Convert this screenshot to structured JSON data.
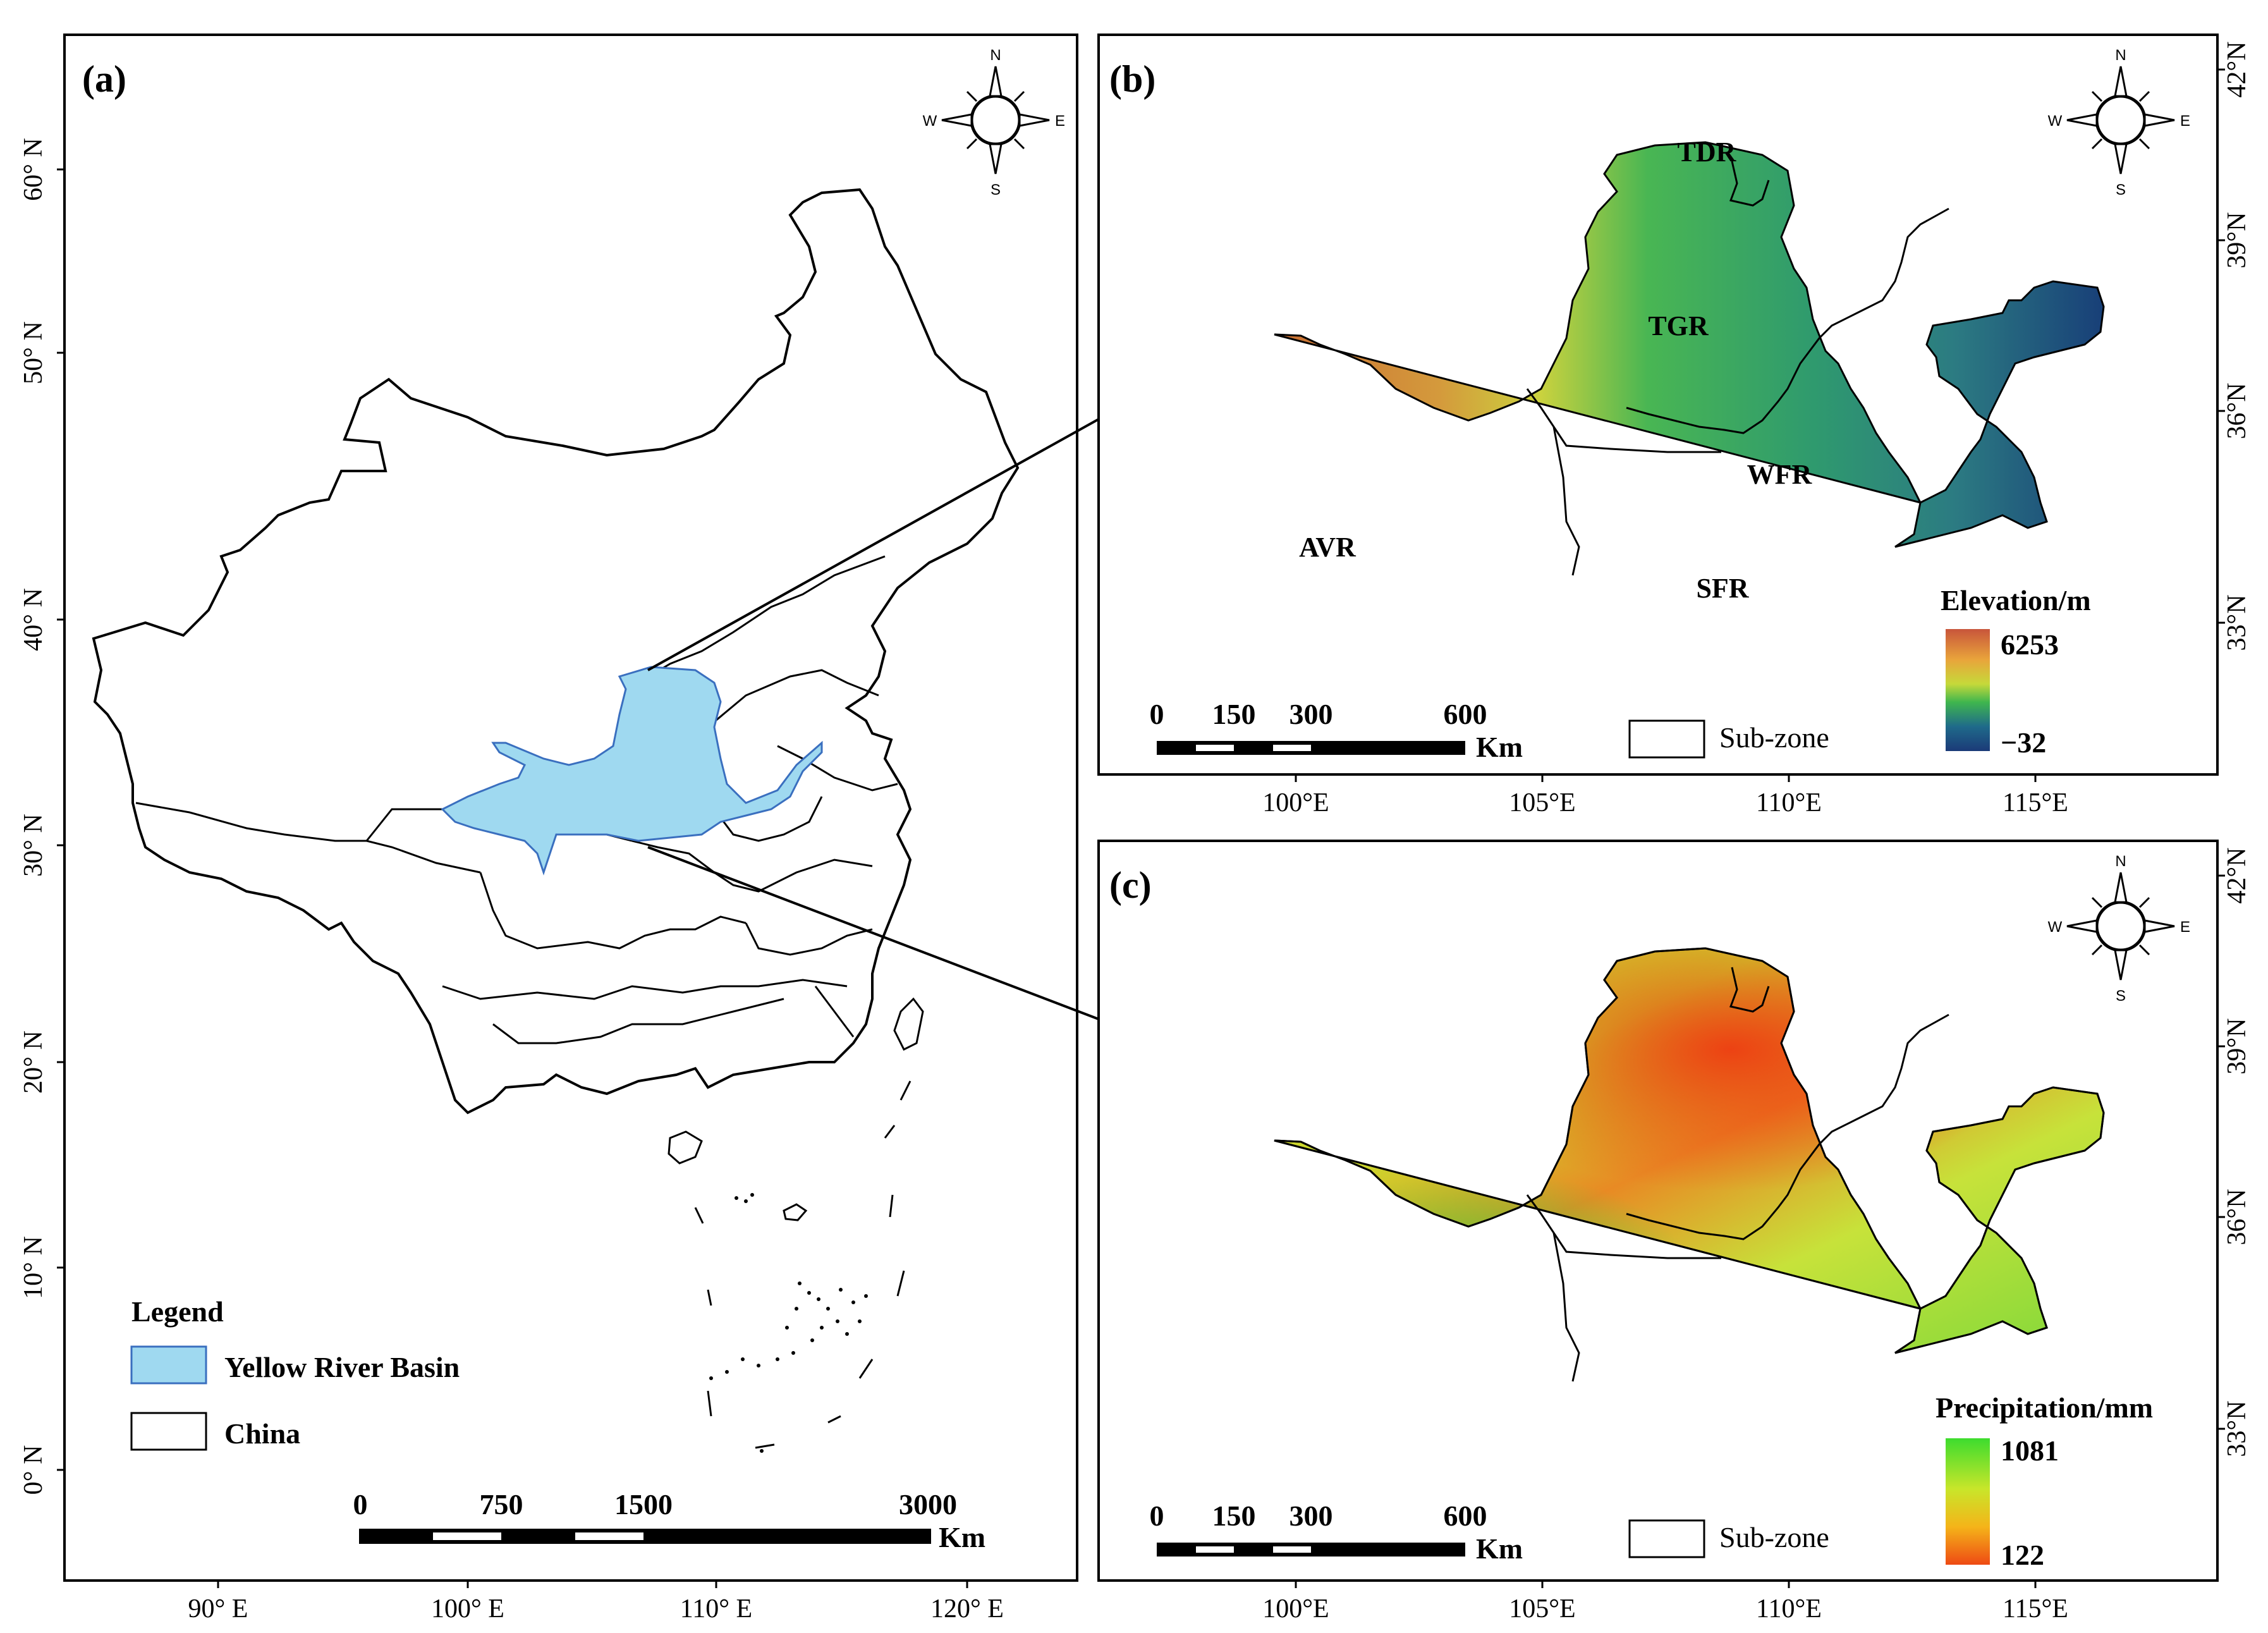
{
  "panels": {
    "a": {
      "label": "(a)",
      "lat_ticks": [
        "60° N",
        "50° N",
        "40° N",
        "30° N",
        "20° N",
        "10° N",
        "0° N"
      ],
      "lon_ticks": [
        "90° E",
        "100° E",
        "110° E",
        "120° E"
      ],
      "compass": {
        "n": "N",
        "s": "S",
        "e": "E",
        "w": "W"
      },
      "legend": {
        "title": "Legend",
        "items": [
          {
            "label": "Yellow River Basin",
            "color": "#9fd9f0"
          },
          {
            "label": "China",
            "color": "#ffffff"
          }
        ]
      },
      "scale": {
        "ticks": [
          "0",
          "750",
          "1500",
          "3000"
        ],
        "unit": "Km"
      }
    },
    "b": {
      "label": "(b)",
      "lat_ticks": [
        "42°N",
        "39°N",
        "36°N",
        "33°N"
      ],
      "lon_ticks": [
        "100°E",
        "105°E",
        "110°E",
        "115°E"
      ],
      "compass": {
        "n": "N",
        "s": "S",
        "e": "E",
        "w": "W"
      },
      "regions": [
        "TDR",
        "TGR",
        "WFR",
        "AVR",
        "SFR"
      ],
      "colorbar": {
        "title": "Elevation/m",
        "max": "6253",
        "min": "−32",
        "colors": [
          "#c8553b",
          "#e9a43b",
          "#9bd63a",
          "#3fb64e",
          "#1f6a8a",
          "#1b3a78"
        ]
      },
      "scale": {
        "ticks": [
          "0",
          "150",
          "300",
          "600"
        ],
        "unit": "Km"
      },
      "subzone_label": "Sub-zone"
    },
    "c": {
      "label": "(c)",
      "lat_ticks": [
        "42°N",
        "39°N",
        "36°N",
        "33°N"
      ],
      "lon_ticks": [
        "100°E",
        "105°E",
        "110°E",
        "115°E"
      ],
      "compass": {
        "n": "N",
        "s": "S",
        "e": "E",
        "w": "W"
      },
      "colorbar": {
        "title": "Precipitation/mm",
        "max": "1081",
        "min": "122",
        "colors": [
          "#3ddc2e",
          "#c8e62a",
          "#f5b419",
          "#ee4a14"
        ]
      },
      "scale": {
        "ticks": [
          "0",
          "150",
          "300",
          "600"
        ],
        "unit": "Km"
      },
      "subzone_label": "Sub-zone"
    }
  }
}
